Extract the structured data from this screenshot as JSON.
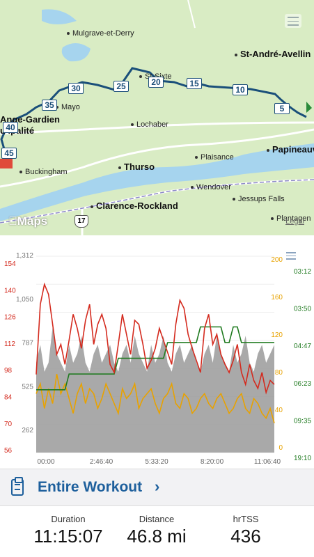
{
  "map": {
    "places": [
      {
        "name": "Mulgrave-et-Derry"
      },
      {
        "name": "St-André-Avellin"
      },
      {
        "name": "St-Sixte"
      },
      {
        "name": "Mayo"
      },
      {
        "name": "Ange-Gardien"
      },
      {
        "name": "u ipalité"
      },
      {
        "name": "Lochaber"
      },
      {
        "name": "Plaisance"
      },
      {
        "name": "Papineauv"
      },
      {
        "name": "Buckingham"
      },
      {
        "name": "Thurso"
      },
      {
        "name": "Wendover"
      },
      {
        "name": "Jessups Falls"
      },
      {
        "name": "Clarence-Rockland"
      },
      {
        "name": "Plantagen"
      }
    ],
    "mile_markers": [
      "5",
      "10",
      "15",
      "20",
      "25",
      "30",
      "35",
      "40",
      "45"
    ],
    "route_shield": "17",
    "brand": "Maps",
    "legal": "Legal",
    "route_color": "#1a4f7a",
    "water_color": "#a6d4ee"
  },
  "chart_data": {
    "type": "line",
    "x_ticks": [
      "00:00",
      "2:46:40",
      "5:33:20",
      "8:20:00",
      "11:06:40"
    ],
    "axes": {
      "heart_rate": {
        "color": "#d42a1e",
        "ticks": [
          "154",
          "140",
          "126",
          "112",
          "98",
          "84",
          "70",
          "56"
        ]
      },
      "elevation": {
        "color": "#777777",
        "ticks": [
          "1,312",
          "1,050",
          "787",
          "525",
          "262"
        ]
      },
      "cadence": {
        "color": "#e8a200",
        "ticks": [
          "200",
          "160",
          "120",
          "80",
          "40",
          "0"
        ]
      },
      "pace": {
        "color": "#1f7a1f",
        "ticks": [
          "03:12",
          "03:50",
          "04:47",
          "06:23",
          "09:35",
          "19:10"
        ]
      }
    },
    "series": [
      {
        "values": [
          95,
          130,
          140,
          135,
          120,
          105,
          110,
          100,
          112,
          125,
          118,
          108,
          122,
          130,
          110,
          120,
          125,
          118,
          100,
          96,
          110,
          125,
          115,
          105,
          122,
          120,
          110,
          98,
          102,
          108,
          118,
          112,
          106,
          100,
          120,
          132,
          128,
          115,
          108,
          102,
          96,
          118,
          125,
          110,
          115,
          105,
          100,
          96,
          102,
          110,
          96,
          90,
          100,
          92,
          88,
          96,
          86,
          92,
          90
        ]
      },
      {
        "values": [
          3,
          3,
          3,
          3,
          3,
          3,
          3,
          3,
          4,
          4,
          4,
          4,
          4,
          4,
          4,
          4,
          4,
          4,
          4,
          4,
          5,
          5,
          5,
          5,
          5,
          5,
          5,
          5,
          5,
          5,
          5,
          5,
          6,
          6,
          6,
          6,
          6,
          6,
          6,
          6,
          7,
          7,
          7,
          7,
          7,
          7,
          6,
          6,
          7,
          7,
          6,
          6,
          6,
          6,
          6,
          6,
          6,
          6,
          6
        ]
      },
      {
        "values": [
          60,
          70,
          45,
          65,
          50,
          80,
          60,
          70,
          55,
          40,
          60,
          70,
          50,
          65,
          60,
          45,
          55,
          70,
          60,
          50,
          40,
          65,
          55,
          60,
          70,
          45,
          55,
          60,
          65,
          50,
          40,
          55,
          60,
          70,
          50,
          45,
          60,
          55,
          40,
          45,
          55,
          60,
          50,
          45,
          55,
          60,
          50,
          40,
          45,
          55,
          60,
          45,
          40,
          55,
          50,
          40,
          35,
          45,
          30
        ]
      },
      {
        "values": [
          10,
          12,
          9,
          10,
          14,
          11,
          10,
          9,
          12,
          10,
          11,
          13,
          10,
          9,
          11,
          12,
          10,
          11,
          12,
          10,
          9,
          11,
          12,
          10,
          13,
          11,
          10,
          9,
          12,
          10,
          11,
          13,
          10,
          9,
          11,
          12,
          10,
          11,
          12,
          10,
          9,
          11,
          12,
          10,
          13,
          11,
          10,
          9,
          12,
          10,
          11,
          13,
          10,
          9,
          11,
          12,
          10,
          11,
          12
        ]
      }
    ]
  },
  "workout": {
    "title": "Entire Workout",
    "chevron": "›"
  },
  "stats": [
    {
      "label": "Duration",
      "value": "11:15:07"
    },
    {
      "label": "Distance",
      "value": "46.8 mi"
    },
    {
      "label": "hrTSS",
      "value": "436"
    }
  ]
}
